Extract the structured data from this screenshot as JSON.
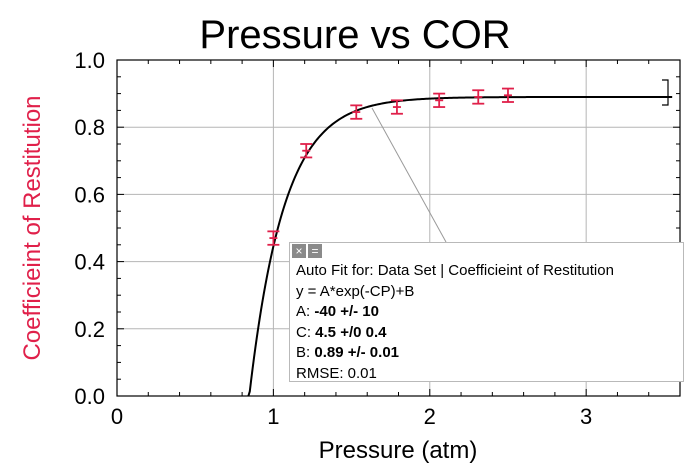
{
  "chart_data": {
    "type": "scatter",
    "title": "Pressure vs COR",
    "xlabel": "Pressure (atm)",
    "ylabel": "Coefficieint of Restitution",
    "xlim": [
      0,
      3.6
    ],
    "ylim": [
      0,
      1.0
    ],
    "x_ticks": [
      "0",
      "1",
      "2",
      "3"
    ],
    "y_ticks": [
      "0.0",
      "0.2",
      "0.4",
      "0.6",
      "0.8",
      "1.0"
    ],
    "grid": true,
    "series": [
      {
        "points": [
          {
            "x": 1.0,
            "y": 0.47,
            "err": 0.02
          },
          {
            "x": 1.21,
            "y": 0.73,
            "err": 0.02
          },
          {
            "x": 1.53,
            "y": 0.845,
            "err": 0.02
          },
          {
            "x": 1.79,
            "y": 0.86,
            "err": 0.02
          },
          {
            "x": 2.06,
            "y": 0.88,
            "err": 0.02
          },
          {
            "x": 2.31,
            "y": 0.89,
            "err": 0.02
          },
          {
            "x": 2.5,
            "y": 0.895,
            "err": 0.02
          }
        ],
        "color": "#e0204a"
      }
    ],
    "fit": {
      "A": -40,
      "C": 4.5,
      "B": 0.89,
      "x_start": 0.84,
      "x_end": 3.55,
      "color": "#000000"
    },
    "axis_label_color": "#e0204a"
  },
  "fit_box": {
    "close_symbols": [
      "×",
      "="
    ],
    "header": "Auto Fit for: Data Set | Coefficieint of Restitution",
    "equation": "y = A*exp(-CP)+B",
    "params": [
      {
        "label": "A:",
        "value": "-40 +/- 10"
      },
      {
        "label": "C:",
        "value": "4.5 +/0 0.4"
      },
      {
        "label": "B:",
        "value": "0.89 +/- 0.01"
      }
    ],
    "rmse": "RMSE: 0.01"
  }
}
